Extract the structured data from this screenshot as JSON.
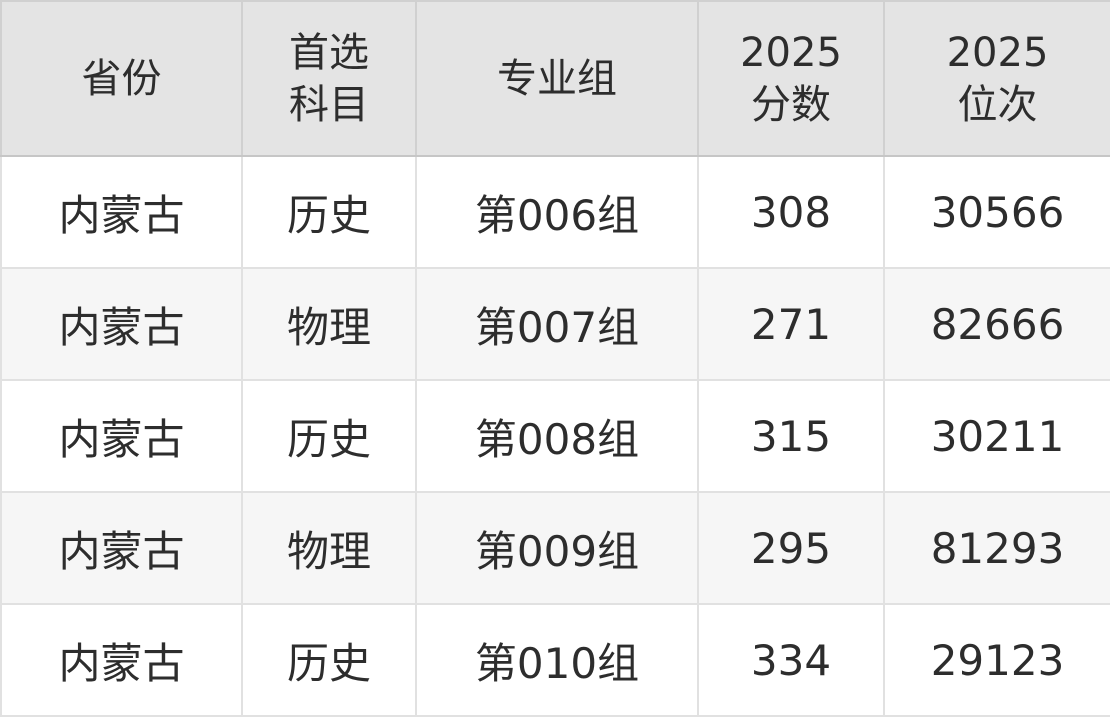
{
  "table": {
    "columns": [
      {
        "id": "province",
        "line1": "省份"
      },
      {
        "id": "subject",
        "line1": "首选",
        "line2": "科目"
      },
      {
        "id": "group",
        "line1": "专业组"
      },
      {
        "id": "score",
        "line1": "2025",
        "line2": "分数"
      },
      {
        "id": "rank",
        "line1": "2025",
        "line2": "位次"
      }
    ],
    "rows": [
      {
        "province": "内蒙古",
        "subject": "历史",
        "group": "第006组",
        "score": "308",
        "rank": "30566"
      },
      {
        "province": "内蒙古",
        "subject": "物理",
        "group": "第007组",
        "score": "271",
        "rank": "82666"
      },
      {
        "province": "内蒙古",
        "subject": "历史",
        "group": "第008组",
        "score": "315",
        "rank": "30211"
      },
      {
        "province": "内蒙古",
        "subject": "物理",
        "group": "第009组",
        "score": "295",
        "rank": "81293"
      },
      {
        "province": "内蒙古",
        "subject": "历史",
        "group": "第010组",
        "score": "334",
        "rank": "29123"
      }
    ],
    "colors": {
      "header_bg": "#e4e4e4",
      "row_alt_bg": "#f6f6f6",
      "row_bg": "#ffffff",
      "grid_line": "#e1e1e1",
      "outer_border": "#c9c9c9",
      "text": "#2d2d2d"
    }
  }
}
